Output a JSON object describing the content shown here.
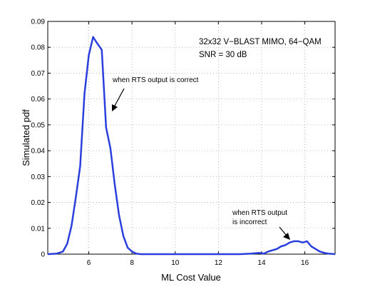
{
  "chart_data": {
    "type": "line",
    "xlabel": "ML Cost Value",
    "ylabel": "Simulated pdf",
    "xlim": [
      4.1,
      17.4
    ],
    "ylim": [
      0,
      0.09
    ],
    "xticks": [
      6,
      8,
      10,
      12,
      14,
      16
    ],
    "yticks": [
      0,
      0.01,
      0.02,
      0.03,
      0.04,
      0.05,
      0.06,
      0.07,
      0.08,
      0.09
    ],
    "xtick_labels": [
      "6",
      "8",
      "10",
      "12",
      "14",
      "16"
    ],
    "ytick_labels": [
      "0",
      "0.01",
      "0.02",
      "0.03",
      "0.04",
      "0.05",
      "0.06",
      "0.07",
      "0.08",
      "0.09"
    ],
    "grid": true,
    "series": [
      {
        "color": "#2b3fdd",
        "x": [
          4.1,
          4.5,
          4.8,
          5.0,
          5.2,
          5.4,
          5.6,
          5.8,
          6.0,
          6.2,
          6.35,
          6.6,
          6.8,
          7.0,
          7.2,
          7.4,
          7.6,
          7.8,
          8.0,
          8.2,
          8.4,
          8.6,
          9.0,
          10.0,
          11.0,
          12.0,
          13.0,
          13.5,
          13.9,
          14.1,
          14.3,
          14.5,
          14.7,
          14.9,
          15.1,
          15.3,
          15.5,
          15.7,
          15.9,
          16.1,
          16.3,
          16.5,
          16.7,
          16.9,
          17.1,
          17.4
        ],
        "values": [
          0.0,
          0.0002,
          0.001,
          0.004,
          0.011,
          0.022,
          0.034,
          0.062,
          0.077,
          0.084,
          0.082,
          0.079,
          0.049,
          0.041,
          0.027,
          0.015,
          0.007,
          0.0025,
          0.001,
          0.0002,
          0.0,
          0.0,
          0.0,
          0.0,
          0.0,
          0.0,
          0.0,
          0.0002,
          0.0005,
          0.0002,
          0.001,
          0.0015,
          0.002,
          0.003,
          0.0035,
          0.0045,
          0.005,
          0.005,
          0.0045,
          0.005,
          0.003,
          0.002,
          0.001,
          0.0005,
          0.0002,
          0.0
        ]
      }
    ],
    "annotations": {
      "correct": "when RTS output is correct",
      "incorrect_line1": "when RTS output",
      "incorrect_line2": "is incorrect",
      "title_line1": "32x32 V−BLAST MIMO, 64−QAM",
      "title_line2": "SNR = 30 dB"
    }
  }
}
